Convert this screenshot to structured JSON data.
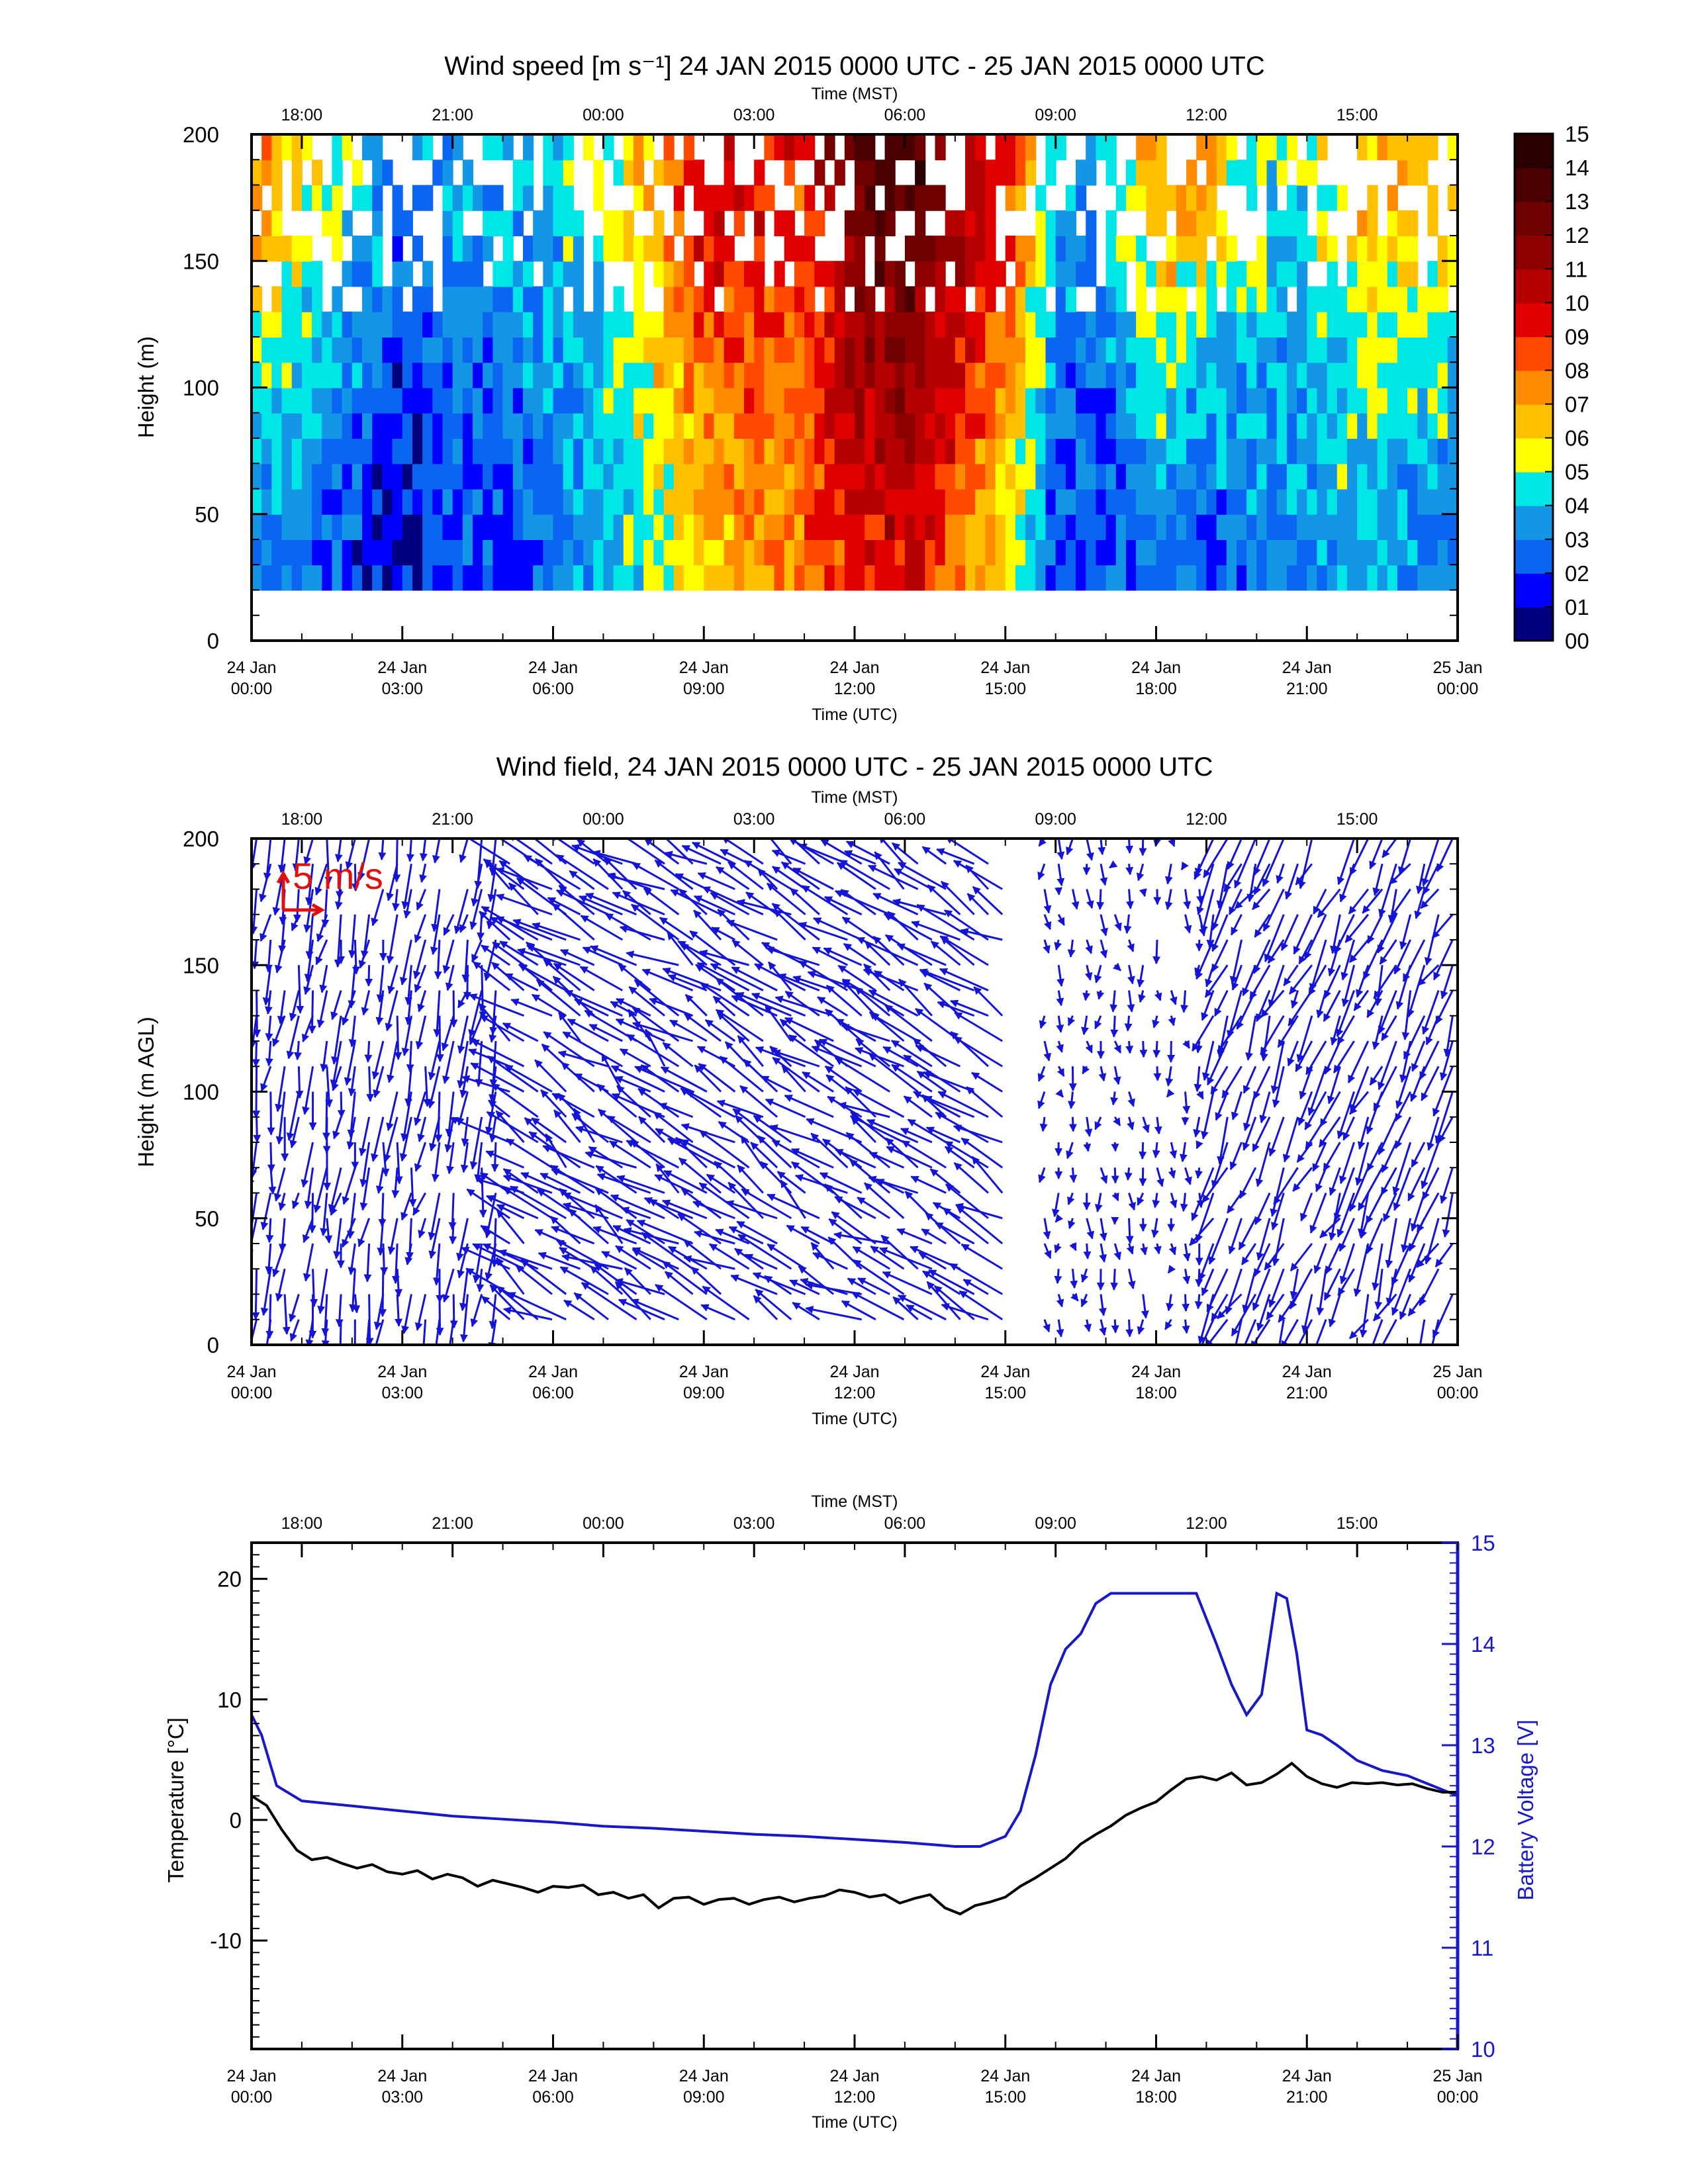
{
  "colors": {
    "frame": "#000000",
    "arrows": "#1414d8",
    "battery_line": "#1818c8",
    "temperature_line": "#000000",
    "scale_arrow": "#e01010",
    "colorbar": [
      "#00007f",
      "#0000ff",
      "#0a66f0",
      "#1496e6",
      "#00e5e5",
      "#ffff00",
      "#ffc000",
      "#ff8c00",
      "#ff4a00",
      "#e00000",
      "#b40000",
      "#8c0000",
      "#6e0000",
      "#4a0000",
      "#2a0000"
    ]
  },
  "time_axis": {
    "utc_ticks": [
      [
        "24 Jan",
        "00:00"
      ],
      [
        "24 Jan",
        "03:00"
      ],
      [
        "24 Jan",
        "06:00"
      ],
      [
        "24 Jan",
        "09:00"
      ],
      [
        "24 Jan",
        "12:00"
      ],
      [
        "24 Jan",
        "15:00"
      ],
      [
        "24 Jan",
        "18:00"
      ],
      [
        "24 Jan",
        "21:00"
      ],
      [
        "25 Jan",
        "00:00"
      ]
    ],
    "utc_label": "Time (UTC)",
    "mst_ticks": [
      "18:00",
      "21:00",
      "00:00",
      "03:00",
      "06:00",
      "09:00",
      "12:00",
      "15:00"
    ],
    "mst_label": "Time (MST)"
  },
  "chart_data": [
    {
      "type": "heatmap",
      "title": "Wind speed [m s⁻¹] 24 JAN 2015 0000 UTC - 25 JAN 2015 0000 UTC",
      "xlabel": "Time (UTC)",
      "x2label": "Time (MST)",
      "ylabel": "Height (m)",
      "x_range_hours_utc": [
        0,
        24
      ],
      "ylim": [
        0,
        200
      ],
      "yticks": [
        0,
        50,
        100,
        150,
        200
      ],
      "colorbar": {
        "labels": [
          "00",
          "01",
          "02",
          "03",
          "04",
          "05",
          "06",
          "07",
          "08",
          "09",
          "10",
          "11",
          "12",
          "13",
          "14",
          "15"
        ],
        "range": [
          0,
          15
        ],
        "units": "m s⁻¹"
      },
      "valid_heights_m": [
        20,
        200
      ],
      "speed_by_hour_utc": {
        "hours": [
          0,
          1,
          2,
          3,
          4,
          5,
          6,
          7,
          8,
          9,
          10,
          11,
          12,
          13,
          14,
          15,
          16,
          17,
          18,
          19,
          20,
          21,
          22,
          23,
          24
        ],
        "low_levels_m_s": [
          3,
          3,
          2,
          1,
          2,
          2,
          3,
          4,
          5,
          6,
          7,
          8,
          9,
          10,
          8,
          6,
          2,
          2,
          3,
          2,
          3,
          3,
          4,
          3,
          3
        ],
        "upper_levels_m_s": [
          8,
          6,
          5,
          3,
          4,
          4,
          4,
          5,
          7,
          11,
          10,
          9,
          13,
          14,
          12,
          10,
          4,
          4,
          8,
          7,
          5,
          5,
          7,
          7,
          6
        ]
      }
    },
    {
      "type": "scatter",
      "title": "Wind field, 24 JAN 2015 0000 UTC - 25 JAN 2015 0000 UTC",
      "xlabel": "Time (UTC)",
      "x2label": "Time (MST)",
      "ylabel": "Height (m AGL)",
      "x_range_hours_utc": [
        0,
        24
      ],
      "ylim": [
        0,
        200
      ],
      "yticks": [
        0,
        50,
        100,
        150,
        200
      ],
      "scale_arrow_label": "5 m/s",
      "description": "wind vectors",
      "direction_by_period": [
        {
          "hours_utc": [
            0,
            5
          ],
          "u": -0.5,
          "v": -3.5
        },
        {
          "hours_utc": [
            5,
            15
          ],
          "u": -4.0,
          "v": 2.5
        },
        {
          "hours_utc": [
            15.5,
            19
          ],
          "u": 0.0,
          "v": -1.5
        },
        {
          "hours_utc": [
            19,
            24
          ],
          "u": -1.5,
          "v": -3.5
        }
      ]
    },
    {
      "type": "line",
      "xlabel": "Time (UTC)",
      "x2label": "Time (MST)",
      "ylabel": "Temperature [°C]",
      "y2label": "Battery Voltage [V]",
      "x_range_hours_utc": [
        0,
        24
      ],
      "ylim": [
        -19,
        23
      ],
      "y2lim": [
        10,
        15
      ],
      "yticks": [
        -10,
        0,
        10,
        20
      ],
      "y2ticks": [
        10,
        11,
        12,
        13,
        14,
        15
      ],
      "series": [
        {
          "name": "Temperature [°C]",
          "axis": "left",
          "x": [
            0,
            0.3,
            0.6,
            0.9,
            1.2,
            1.5,
            1.8,
            2.1,
            2.4,
            2.7,
            3.0,
            3.3,
            3.6,
            3.9,
            4.2,
            4.5,
            4.8,
            5.1,
            5.4,
            5.7,
            6.0,
            6.3,
            6.6,
            6.9,
            7.2,
            7.5,
            7.8,
            8.1,
            8.4,
            8.7,
            9.0,
            9.3,
            9.6,
            9.9,
            10.2,
            10.5,
            10.8,
            11.1,
            11.4,
            11.7,
            12.0,
            12.3,
            12.6,
            12.9,
            13.2,
            13.5,
            13.8,
            14.1,
            14.4,
            14.7,
            15.0,
            15.3,
            15.6,
            15.9,
            16.2,
            16.5,
            16.8,
            17.1,
            17.4,
            17.7,
            18.0,
            18.3,
            18.6,
            18.9,
            19.2,
            19.5,
            19.8,
            20.1,
            20.4,
            20.7,
            21.0,
            21.3,
            21.6,
            21.9,
            22.2,
            22.5,
            22.8,
            23.1,
            23.4,
            23.7,
            24.0
          ],
          "y": [
            2.0,
            1.2,
            -0.8,
            -2.5,
            -3.3,
            -3.1,
            -3.6,
            -4.0,
            -3.7,
            -4.3,
            -4.5,
            -4.2,
            -4.9,
            -4.5,
            -4.8,
            -5.5,
            -5.0,
            -5.3,
            -5.6,
            -6.0,
            -5.5,
            -5.6,
            -5.4,
            -6.2,
            -6.0,
            -6.5,
            -6.2,
            -7.3,
            -6.5,
            -6.4,
            -7.0,
            -6.6,
            -6.5,
            -7.0,
            -6.6,
            -6.4,
            -6.8,
            -6.5,
            -6.3,
            -5.8,
            -6.0,
            -6.4,
            -6.2,
            -6.9,
            -6.5,
            -6.2,
            -7.3,
            -7.8,
            -7.1,
            -6.8,
            -6.4,
            -5.5,
            -4.8,
            -4.0,
            -3.2,
            -2.0,
            -1.2,
            -0.5,
            0.4,
            1.0,
            1.5,
            2.5,
            3.4,
            3.6,
            3.3,
            3.9,
            2.9,
            3.1,
            3.8,
            4.7,
            3.6,
            3.0,
            2.7,
            3.1,
            3.0,
            3.1,
            2.9,
            3.0,
            2.6,
            2.3,
            2.3
          ]
        },
        {
          "name": "Battery Voltage [V]",
          "axis": "right",
          "x": [
            0,
            0.2,
            0.5,
            1.0,
            2.0,
            3.0,
            4.0,
            5.0,
            6.0,
            7.0,
            8.0,
            9.0,
            10.0,
            11.0,
            12.0,
            13.0,
            14.0,
            14.5,
            15.0,
            15.3,
            15.6,
            15.9,
            16.2,
            16.5,
            16.8,
            17.1,
            17.4,
            17.7,
            18.0,
            18.4,
            18.8,
            19.2,
            19.5,
            19.8,
            20.1,
            20.4,
            20.6,
            20.8,
            21.0,
            21.3,
            21.6,
            22.0,
            22.5,
            23.0,
            23.5,
            24.0
          ],
          "y": [
            13.3,
            13.1,
            12.6,
            12.45,
            12.4,
            12.35,
            12.3,
            12.27,
            12.24,
            12.2,
            12.18,
            12.15,
            12.12,
            12.1,
            12.07,
            12.04,
            12.0,
            12.0,
            12.1,
            12.35,
            12.9,
            13.6,
            13.95,
            14.1,
            14.4,
            14.5,
            14.5,
            14.5,
            14.5,
            14.5,
            14.5,
            14.0,
            13.6,
            13.3,
            13.5,
            14.5,
            14.45,
            13.9,
            13.15,
            13.1,
            13.0,
            12.85,
            12.75,
            12.7,
            12.6,
            12.5
          ]
        }
      ]
    }
  ]
}
